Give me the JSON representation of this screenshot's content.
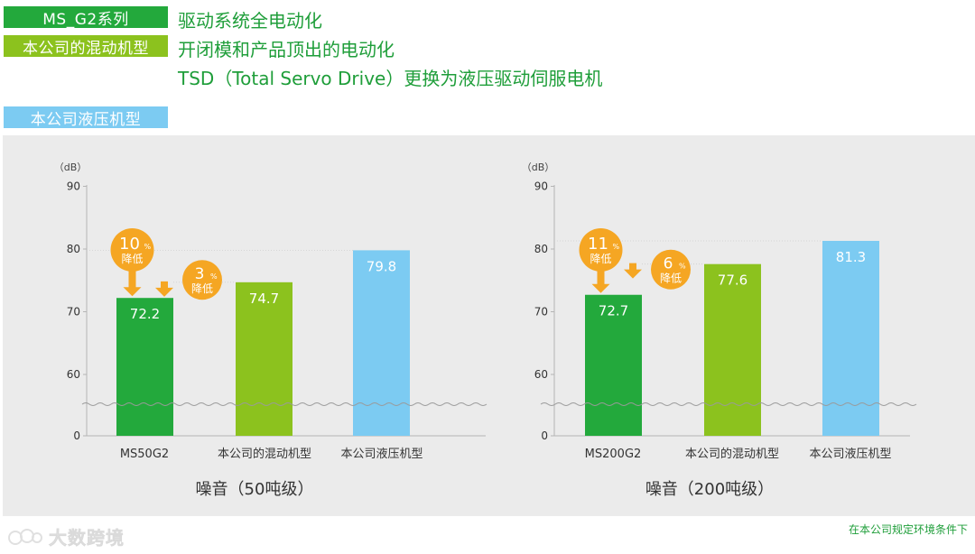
{
  "legend": [
    {
      "tag": "MS_G2系列",
      "desc": "驱动系统全电动化"
    },
    {
      "tag": "本公司的混动机型",
      "desc": "开闭模和产品顶出的电动化",
      "desc2": "TSD（Total Servo Drive）更换为液压驱动伺服电机"
    },
    {
      "tag": "本公司液压机型"
    }
  ],
  "colors": {
    "ms_g2": "#23a93c",
    "hybrid": "#8cc21e",
    "hydraulic": "#7ccbf2",
    "badge": "#f5a623",
    "text_green": "#1f9e3a"
  },
  "chart_data": [
    {
      "type": "bar",
      "ylabel": "（dB）",
      "yticks": [
        "0",
        "60",
        "70",
        "80",
        "90"
      ],
      "ylim": [
        0,
        90
      ],
      "axis_break": "between 0 and 60",
      "categories": [
        "MS50G2",
        "本公司的混动机型",
        "本公司液压机型"
      ],
      "values": [
        72.2,
        74.7,
        79.8
      ],
      "value_labels": [
        "72.2",
        "74.7",
        "79.8"
      ],
      "xlabel": "噪音（50吨级）",
      "reductions": [
        {
          "from": "本公司液压机型",
          "num": "10",
          "pct": "%",
          "word": "降低"
        },
        {
          "from": "本公司的混动机型",
          "num": "3",
          "pct": "%",
          "word": "降低"
        }
      ]
    },
    {
      "type": "bar",
      "ylabel": "（dB）",
      "yticks": [
        "0",
        "60",
        "70",
        "80",
        "90"
      ],
      "ylim": [
        0,
        90
      ],
      "axis_break": "between 0 and 60",
      "categories": [
        "MS200G2",
        "本公司的混动机型",
        "本公司液压机型"
      ],
      "values": [
        72.7,
        77.6,
        81.3
      ],
      "value_labels": [
        "72.7",
        "77.6",
        "81.3"
      ],
      "xlabel": "噪音（200吨级）",
      "reductions": [
        {
          "from": "本公司液压机型",
          "num": "11",
          "pct": "%",
          "word": "降低"
        },
        {
          "from": "本公司的混动机型",
          "num": "6",
          "pct": "%",
          "word": "降低"
        }
      ]
    }
  ],
  "footer": {
    "note": "在本公司规定环境条件下"
  },
  "watermark": {
    "text": "大数跨境"
  }
}
